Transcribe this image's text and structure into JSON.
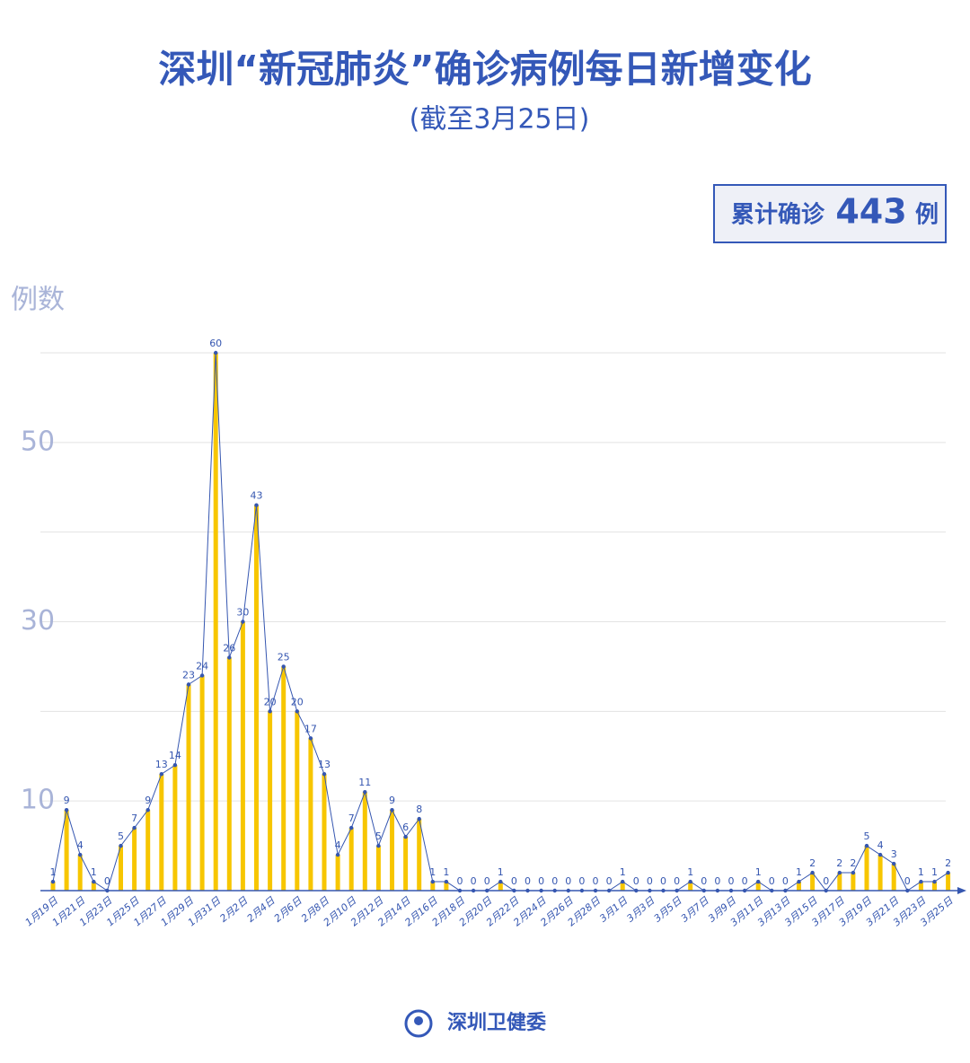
{
  "chart_data": {
    "type": "bar-line",
    "title": "深圳“新冠肺炎”确诊病例每日新增变化",
    "subtitle": "(截至3月25日)",
    "total_box": {
      "prefix": "累计确诊",
      "value": 443,
      "suffix": "例"
    },
    "y_label": "例数",
    "source": "深圳卫健委",
    "categories": [
      "1月19日",
      null,
      "1月21日",
      null,
      "1月23日",
      null,
      "1月25日",
      null,
      "1月27日",
      null,
      "1月29日",
      null,
      "1月31日",
      null,
      "2月2日",
      null,
      "2月4日",
      null,
      "2月6日",
      null,
      "2月8日",
      null,
      "2月10日",
      null,
      "2月12日",
      null,
      "2月14日",
      null,
      "2月16日",
      null,
      "2月18日",
      null,
      "2月20日",
      null,
      "2月22日",
      null,
      "2月24日",
      null,
      "2月26日",
      null,
      "2月28日",
      null,
      "3月1日",
      null,
      "3月3日",
      null,
      "3月5日",
      null,
      "3月7日",
      null,
      "3月9日",
      null,
      "3月11日",
      null,
      "3月13日",
      null,
      "3月15日",
      null,
      "3月17日",
      null,
      "3月19日",
      null,
      "3月21日",
      null,
      "3月23日",
      null,
      "3月25日"
    ],
    "values": [
      1,
      9,
      4,
      1,
      0,
      5,
      7,
      9,
      13,
      14,
      23,
      24,
      60,
      26,
      30,
      43,
      20,
      25,
      20,
      17,
      13,
      4,
      7,
      11,
      5,
      9,
      6,
      8,
      1,
      1,
      0,
      0,
      0,
      1,
      0,
      0,
      0,
      0,
      0,
      0,
      0,
      0,
      1,
      0,
      0,
      0,
      0,
      1,
      0,
      0,
      0,
      0,
      1,
      0,
      0,
      1,
      2,
      0,
      2,
      2,
      5,
      4,
      3,
      0,
      1,
      1,
      2
    ],
    "bar_color": "#f7c600",
    "line_color": "#3556b0",
    "ylim": [
      0,
      60
    ],
    "yticks": [
      10,
      30,
      50
    ],
    "ygrid": [
      10,
      20,
      30,
      40,
      50,
      60
    ],
    "grid": true
  }
}
